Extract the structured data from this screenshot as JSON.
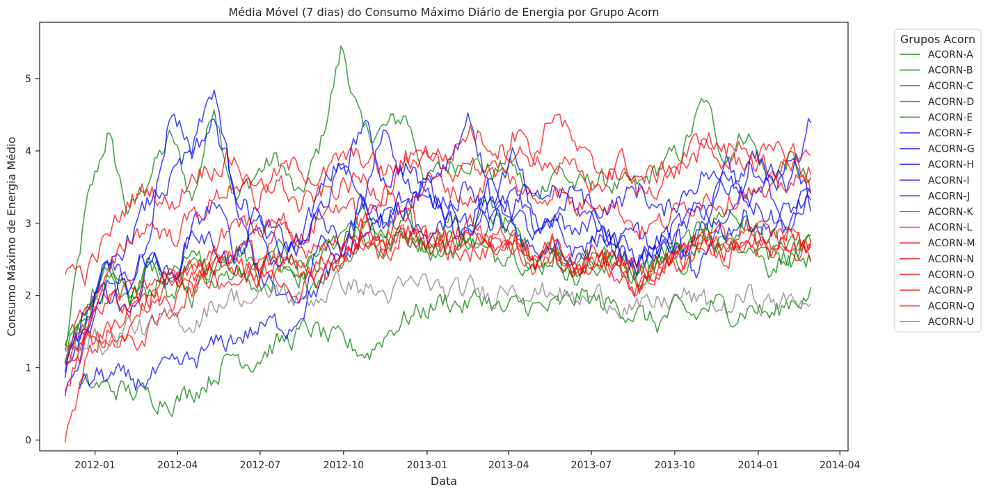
{
  "chart_data": {
    "type": "line",
    "title": "Média Móvel (7 dias) do Consumo Máximo Diário de Energia por Grupo Acorn",
    "xlabel": "Data",
    "ylabel": "Consumo Máximo de Energia Médio",
    "xlim": [
      "2011-11-01",
      "2014-04-10"
    ],
    "ylim": [
      -0.15,
      5.78
    ],
    "x_ticks": [
      "2012-01",
      "2012-04",
      "2012-07",
      "2012-10",
      "2013-01",
      "2013-04",
      "2013-07",
      "2013-10",
      "2014-01",
      "2014-04"
    ],
    "y_ticks": [
      0,
      1,
      2,
      3,
      4,
      5
    ],
    "grid": false,
    "legend": {
      "title": "Grupos Acorn",
      "placement": "outside-right"
    },
    "series": [
      {
        "name": "ACORN-A",
        "color": "#008000",
        "start": "2011-11-29",
        "end": "2014-02-28",
        "values": [
          1.2,
          3.2,
          4.25,
          3.1,
          3.7,
          4.2,
          3.3,
          4.7,
          3.3,
          3.7,
          3.9,
          3.3,
          4.1,
          5.45,
          4.2,
          4.3,
          4.5,
          3.6,
          3.8,
          3.9,
          3.7,
          3.8,
          3.3,
          3.8,
          3.5,
          3.6,
          3.5,
          3.5,
          3.8,
          4.0,
          4.7,
          3.9,
          4.3,
          3.6,
          3.9,
          3.5
        ]
      },
      {
        "name": "ACORN-B",
        "color": "#008000",
        "start": "2011-11-29",
        "end": "2014-02-28",
        "values": [
          1.0,
          1.8,
          2.2,
          1.9,
          2.1,
          2.3,
          2.0,
          2.5,
          2.7,
          2.4,
          2.6,
          2.3,
          2.5,
          2.9,
          3.1,
          2.8,
          3.0,
          2.7,
          3.1,
          2.8,
          3.3,
          2.9,
          2.6,
          2.7,
          2.4,
          2.6,
          2.4,
          2.3,
          2.5,
          2.7,
          2.9,
          3.2,
          3.0,
          2.8,
          2.6,
          2.7
        ]
      },
      {
        "name": "ACORN-C",
        "color": "#008000",
        "start": "2011-11-29",
        "end": "2014-02-28",
        "values": [
          1.3,
          1.6,
          2.4,
          1.8,
          2.6,
          1.9,
          2.7,
          2.2,
          2.5,
          2.0,
          2.3,
          2.1,
          2.3,
          2.5,
          2.8,
          2.6,
          2.9,
          2.7,
          2.6,
          2.8,
          2.5,
          2.7,
          2.3,
          2.6,
          2.2,
          2.4,
          2.6,
          2.3,
          2.5,
          2.6,
          2.9,
          2.7,
          2.8,
          2.4,
          2.6,
          2.6
        ]
      },
      {
        "name": "ACORN-D",
        "color": "#008000",
        "start": "2011-11-29",
        "end": "2014-02-28",
        "values": [
          1.2,
          1.9,
          2.3,
          2.0,
          2.4,
          2.2,
          2.5,
          2.1,
          2.4,
          2.3,
          2.7,
          2.4,
          2.6,
          2.8,
          3.0,
          2.7,
          2.9,
          2.6,
          2.8,
          2.7,
          3.0,
          2.8,
          2.4,
          2.5,
          2.3,
          2.5,
          2.4,
          2.2,
          2.6,
          2.5,
          2.8,
          2.7,
          3.0,
          2.6,
          2.5,
          2.5
        ]
      },
      {
        "name": "ACORN-E",
        "color": "#008000",
        "start": "2011-12-15",
        "end": "2014-02-28",
        "values": [
          0.7,
          0.75,
          0.7,
          0.65,
          0.6,
          0.55,
          0.7,
          0.9,
          1.2,
          1.1,
          1.3,
          1.4,
          1.55,
          1.4,
          1.3,
          1.2,
          1.5,
          1.7,
          1.8,
          1.95,
          1.85,
          2.0,
          1.75,
          1.9,
          1.8,
          1.85,
          2.0,
          1.9,
          1.85,
          1.75,
          1.6,
          1.8,
          1.7,
          1.9,
          1.75,
          1.85,
          1.7,
          1.95,
          2.0
        ]
      },
      {
        "name": "ACORN-F",
        "color": "#0000FF",
        "start": "2011-11-29",
        "end": "2014-02-28",
        "values": [
          0.9,
          1.6,
          2.6,
          2.0,
          3.0,
          4.6,
          4.0,
          4.4,
          3.5,
          3.0,
          2.8,
          2.6,
          3.2,
          3.7,
          4.4,
          3.6,
          3.8,
          3.4,
          3.2,
          3.6,
          3.0,
          3.4,
          2.9,
          3.1,
          2.8,
          3.2,
          3.3,
          3.5,
          3.1,
          3.4,
          3.7,
          3.5,
          3.9,
          3.6,
          3.8,
          3.3
        ]
      },
      {
        "name": "ACORN-G",
        "color": "#0000FF",
        "start": "2011-11-29",
        "end": "2014-02-28",
        "values": [
          0.6,
          1.3,
          2.2,
          1.7,
          2.5,
          2.1,
          2.9,
          3.3,
          2.6,
          3.0,
          2.4,
          2.8,
          3.1,
          2.6,
          3.4,
          3.0,
          3.2,
          2.8,
          3.0,
          2.7,
          3.3,
          3.0,
          2.6,
          2.8,
          2.5,
          2.9,
          2.7,
          2.5,
          2.8,
          3.0,
          3.2,
          2.9,
          3.1,
          2.9,
          3.2,
          3.3
        ]
      },
      {
        "name": "ACORN-H",
        "color": "#0000FF",
        "start": "2011-11-29",
        "end": "2014-02-28",
        "values": [
          1.0,
          1.8,
          2.0,
          2.3,
          2.6,
          2.2,
          2.9,
          2.7,
          2.4,
          3.1,
          2.6,
          2.8,
          3.4,
          3.9,
          3.2,
          4.4,
          3.6,
          3.2,
          3.4,
          3.0,
          3.5,
          3.2,
          2.8,
          2.9,
          2.6,
          2.8,
          2.6,
          2.4,
          2.6,
          2.9,
          3.2,
          3.6,
          3.3,
          3.1,
          2.9,
          3.4
        ]
      },
      {
        "name": "ACORN-I",
        "color": "#0000FF",
        "start": "2011-12-15",
        "end": "2014-02-28",
        "values": [
          0.7,
          0.9,
          0.85,
          0.8,
          0.9,
          1.0,
          1.1,
          1.3,
          1.4,
          1.5,
          1.6,
          1.6,
          2.0,
          2.3,
          2.6,
          2.9,
          3.1,
          3.4,
          3.6,
          3.0,
          2.8,
          3.2,
          2.9,
          3.4,
          3.0,
          3.2,
          3.5,
          3.0,
          2.7,
          2.9,
          2.6,
          2.8,
          2.3,
          2.9,
          3.2,
          4.0,
          3.6,
          3.5,
          4.45
        ]
      },
      {
        "name": "ACORN-J",
        "color": "#0000FF",
        "start": "2011-11-29",
        "end": "2014-02-28",
        "values": [
          0.9,
          1.7,
          2.3,
          2.8,
          3.3,
          3.6,
          4.0,
          4.9,
          3.2,
          2.4,
          2.0,
          1.8,
          2.8,
          2.5,
          3.4,
          3.0,
          3.3,
          3.6,
          3.9,
          4.5,
          3.3,
          3.9,
          3.2,
          3.5,
          3.2,
          3.0,
          2.7,
          2.5,
          2.8,
          2.6,
          2.9,
          3.8,
          3.2,
          3.5,
          3.0,
          3.5
        ]
      },
      {
        "name": "ACORN-K",
        "color": "#FF0000",
        "start": "2011-11-29",
        "end": "2014-02-28",
        "values": [
          2.4,
          2.3,
          2.8,
          3.3,
          3.5,
          3.2,
          3.7,
          3.8,
          3.9,
          3.3,
          3.7,
          3.8,
          3.6,
          3.9,
          3.9,
          3.7,
          3.8,
          4.0,
          3.9,
          4.3,
          4.1,
          4.0,
          3.9,
          4.6,
          4.0,
          3.7,
          3.9,
          3.6,
          3.7,
          3.9,
          4.2,
          4.0,
          4.1,
          3.9,
          4.0,
          3.9
        ]
      },
      {
        "name": "ACORN-L",
        "color": "#FF0000",
        "start": "2011-11-29",
        "end": "2014-02-28",
        "values": [
          1.3,
          1.9,
          2.2,
          2.8,
          3.0,
          2.8,
          3.1,
          3.3,
          3.6,
          3.4,
          3.6,
          3.2,
          3.4,
          3.5,
          3.6,
          3.4,
          3.9,
          3.8,
          3.7,
          3.9,
          3.6,
          4.2,
          4.0,
          3.8,
          3.7,
          3.5,
          3.7,
          3.4,
          3.6,
          3.8,
          4.0,
          3.8,
          3.9,
          3.7,
          3.8,
          3.7
        ]
      },
      {
        "name": "ACORN-M",
        "color": "#FF0000",
        "start": "2011-11-29",
        "end": "2014-02-28",
        "values": [
          1.0,
          1.4,
          1.2,
          1.6,
          2.0,
          1.8,
          2.2,
          2.6,
          3.1,
          2.9,
          3.2,
          2.7,
          3.1,
          3.3,
          3.0,
          3.4,
          3.2,
          3.6,
          3.5,
          3.3,
          3.7,
          3.6,
          3.3,
          3.5,
          3.2,
          3.4,
          3.2,
          2.9,
          3.0,
          3.2,
          3.4,
          3.3,
          3.5,
          3.3,
          3.6,
          3.5
        ]
      },
      {
        "name": "ACORN-N",
        "color": "#FF0000",
        "start": "2011-11-29",
        "end": "2014-02-28",
        "values": [
          0.8,
          1.3,
          1.5,
          1.7,
          2.0,
          2.2,
          2.1,
          2.4,
          2.7,
          2.5,
          2.9,
          2.6,
          2.8,
          2.7,
          3.0,
          2.8,
          3.1,
          2.9,
          2.7,
          3.0,
          2.8,
          2.9,
          2.5,
          2.7,
          2.4,
          2.6,
          2.4,
          2.2,
          2.5,
          2.6,
          2.9,
          2.7,
          3.0,
          2.8,
          2.9,
          2.6
        ]
      },
      {
        "name": "ACORN-O",
        "color": "#FF0000",
        "start": "2011-11-29",
        "end": "2014-02-28",
        "values": [
          0.1,
          1.1,
          1.6,
          1.3,
          1.5,
          1.8,
          2.1,
          2.3,
          2.2,
          2.4,
          2.3,
          2.1,
          2.3,
          2.5,
          2.7,
          2.6,
          2.9,
          2.7,
          2.8,
          2.6,
          2.9,
          2.7,
          2.4,
          2.5,
          2.3,
          2.5,
          2.3,
          2.1,
          2.4,
          2.5,
          2.7,
          2.6,
          2.8,
          2.6,
          2.7,
          2.5
        ]
      },
      {
        "name": "ACORN-P",
        "color": "#FF0000",
        "start": "2011-11-29",
        "end": "2014-02-28",
        "values": [
          1.0,
          1.6,
          1.9,
          2.1,
          2.0,
          2.3,
          2.2,
          2.5,
          2.4,
          2.3,
          2.5,
          2.4,
          2.3,
          2.6,
          2.8,
          2.6,
          2.9,
          2.7,
          2.6,
          2.8,
          2.6,
          2.7,
          2.4,
          2.6,
          2.3,
          2.5,
          2.3,
          2.1,
          2.4,
          2.5,
          2.7,
          2.5,
          2.8,
          2.6,
          2.7,
          2.6
        ]
      },
      {
        "name": "ACORN-Q",
        "color": "#FF0000",
        "start": "2011-11-29",
        "end": "2014-02-28",
        "values": [
          1.1,
          1.7,
          2.0,
          1.8,
          2.2,
          2.1,
          2.4,
          2.3,
          2.5,
          2.2,
          2.4,
          2.3,
          2.5,
          2.6,
          2.8,
          2.7,
          2.9,
          2.8,
          2.6,
          2.9,
          2.7,
          2.8,
          2.5,
          2.7,
          2.4,
          2.6,
          2.5,
          2.3,
          2.5,
          2.6,
          2.8,
          2.6,
          2.9,
          2.7,
          2.8,
          2.7
        ]
      },
      {
        "name": "ACORN-U",
        "color": "#808080",
        "start": "2011-11-29",
        "end": "2014-02-28",
        "values": [
          1.1,
          1.5,
          1.3,
          1.6,
          1.5,
          1.7,
          1.6,
          1.9,
          2.0,
          1.9,
          2.1,
          1.9,
          2.0,
          2.2,
          2.1,
          2.0,
          2.1,
          2.2,
          2.0,
          2.1,
          2.0,
          2.2,
          2.0,
          2.1,
          1.9,
          2.0,
          1.9,
          1.8,
          1.9,
          2.0,
          1.9,
          1.8,
          2.0,
          1.9,
          1.9,
          2.0
        ]
      }
    ]
  }
}
